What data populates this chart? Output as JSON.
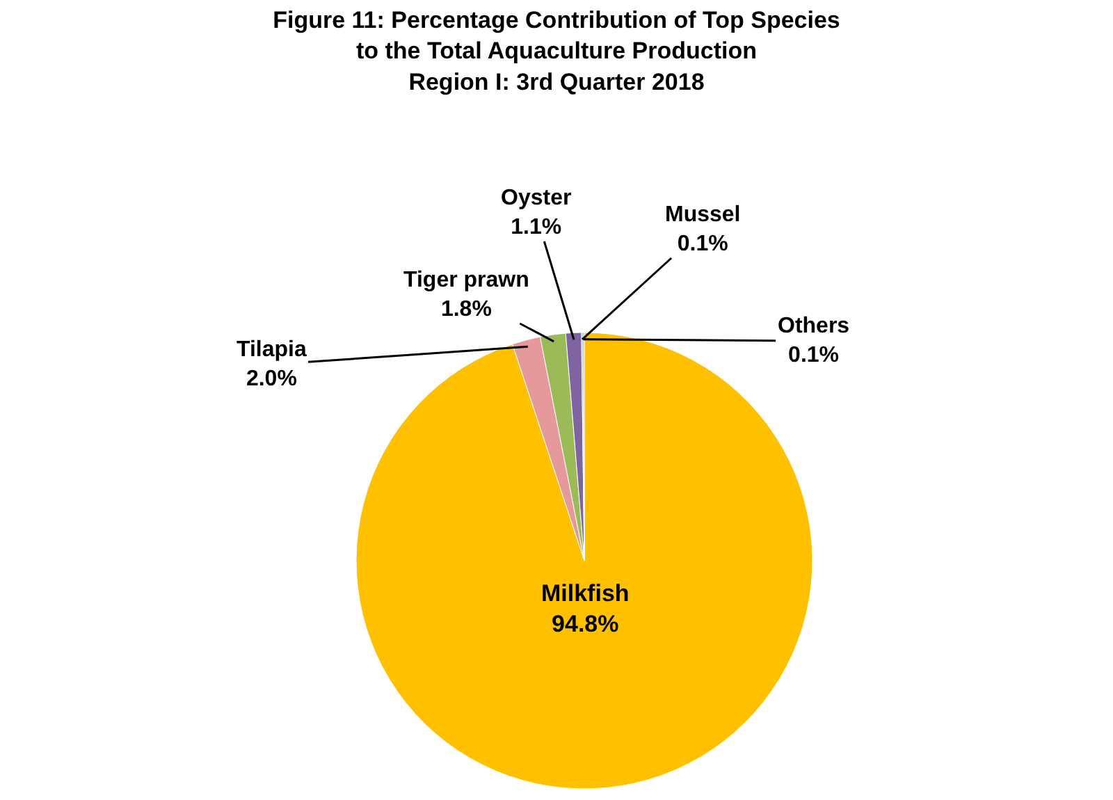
{
  "chart_data": {
    "type": "pie",
    "title": "Figure 11: Percentage Contribution of Top Species\nto the Total Aquaculture Production\nRegion I: 3rd Quarter 2018",
    "categories": [
      "Milkfish",
      "Tilapia",
      "Tiger prawn",
      "Oyster",
      "Mussel",
      "Others"
    ],
    "values": [
      94.8,
      2.0,
      1.8,
      1.1,
      0.1,
      0.1
    ],
    "value_labels": [
      "94.8%",
      "2.0%",
      "1.8%",
      "1.1%",
      "0.1%",
      "0.1%"
    ],
    "colors": [
      "#ffc000",
      "#e6999a",
      "#9bbb59",
      "#8064a2",
      "#4bacc6",
      "#f79646"
    ],
    "legend": false
  }
}
